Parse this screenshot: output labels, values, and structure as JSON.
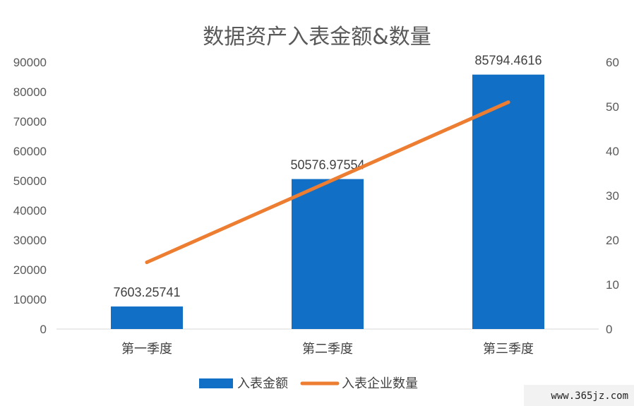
{
  "chart_data": {
    "type": "bar",
    "title": "数据资产入表金额&数量",
    "categories": [
      "第一季度",
      "第二季度",
      "第三季度"
    ],
    "series": [
      {
        "name": "入表金额",
        "kind": "bar",
        "axis": "left",
        "color": "#1170C6",
        "values": [
          7603.25741,
          50576.97554,
          85794.4616
        ],
        "labels": [
          "7603.25741",
          "50576.97554",
          "85794.4616"
        ]
      },
      {
        "name": "入表企业数量",
        "kind": "line",
        "axis": "right",
        "color": "#ED7D31",
        "values": [
          15,
          33,
          51
        ]
      }
    ],
    "yleft": {
      "lim": [
        0,
        90000
      ],
      "ticks": [
        0,
        10000,
        20000,
        30000,
        40000,
        50000,
        60000,
        70000,
        80000,
        90000
      ]
    },
    "yright": {
      "lim": [
        0,
        60
      ],
      "ticks": [
        0,
        10,
        20,
        30,
        40,
        50,
        60
      ]
    },
    "grid": false,
    "legend_position": "bottom"
  },
  "footer": {
    "site": "www.365jz.com"
  }
}
